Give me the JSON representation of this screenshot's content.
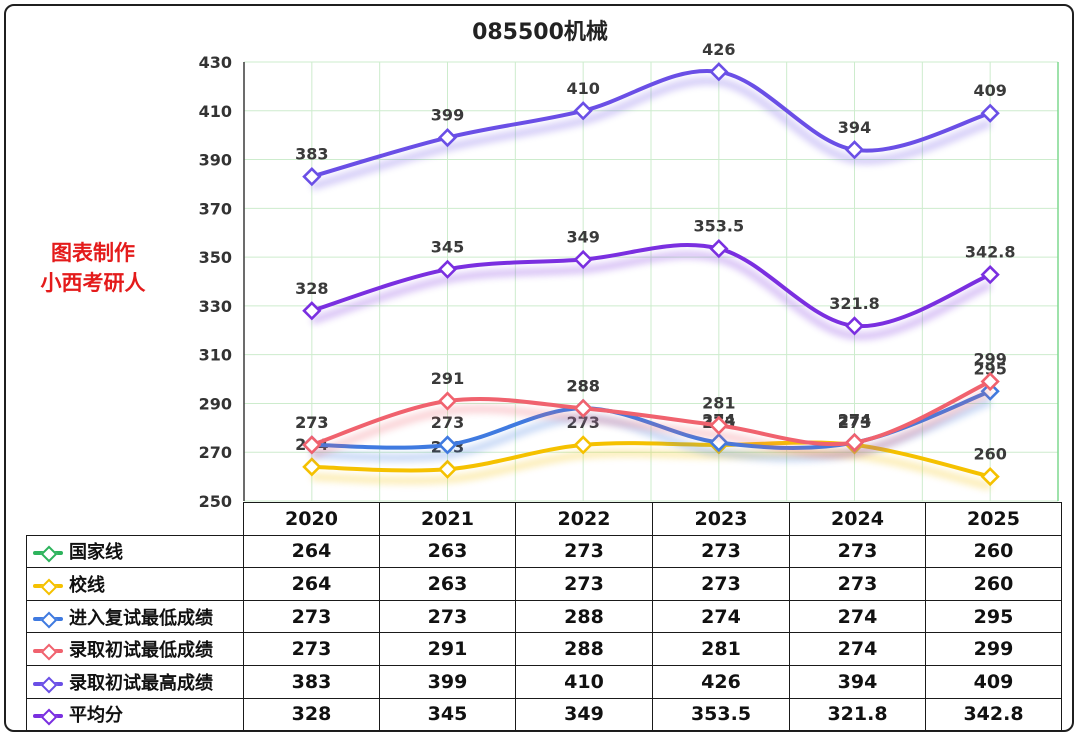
{
  "chart_data": {
    "type": "line",
    "title": "085500机械",
    "categories": [
      "2020",
      "2021",
      "2022",
      "2023",
      "2024",
      "2025"
    ],
    "ylim": [
      250,
      430
    ],
    "yticks": [
      250,
      270,
      290,
      310,
      330,
      350,
      370,
      390,
      410,
      430
    ],
    "grid": true,
    "legend": "table-below",
    "series": [
      {
        "name": "国家线",
        "color": "#2db35c",
        "values": [
          264,
          263,
          273,
          273,
          273,
          260
        ],
        "labels": [
          "264",
          "263",
          "273",
          "273",
          "273",
          "260"
        ],
        "plotted": false
      },
      {
        "name": "校线",
        "color": "#f5c100",
        "values": [
          264,
          263,
          273,
          273,
          273,
          260
        ],
        "labels": [
          "264",
          "263",
          "273",
          "273",
          "273",
          "260"
        ],
        "plotted": true
      },
      {
        "name": "进入复试最低成绩",
        "color": "#3f7ae0",
        "values": [
          273,
          273,
          288,
          274,
          274,
          295
        ],
        "labels": [
          "273",
          "273",
          "288",
          "274",
          "274",
          "295"
        ],
        "plotted": true
      },
      {
        "name": "录取初试最低成绩",
        "color": "#f0626e",
        "values": [
          273,
          291,
          288,
          281,
          274,
          299
        ],
        "labels": [
          "273",
          "291",
          "288",
          "281",
          "274",
          "299"
        ],
        "plotted": true
      },
      {
        "name": "录取初试最高成绩",
        "color": "#6a4fe6",
        "values": [
          383,
          399,
          410,
          426,
          394,
          409
        ],
        "labels": [
          "383",
          "399",
          "410",
          "426",
          "394",
          "409"
        ],
        "plotted": true
      },
      {
        "name": "平均分",
        "color": "#7a2fe0",
        "values": [
          328,
          345,
          349,
          353.5,
          321.8,
          342.8
        ],
        "labels": [
          "328",
          "345",
          "349",
          "353.5",
          "321.8",
          "342.8"
        ],
        "plotted": true
      }
    ]
  },
  "watermark": {
    "line1": "图表制作",
    "line2": "小西考研人"
  }
}
